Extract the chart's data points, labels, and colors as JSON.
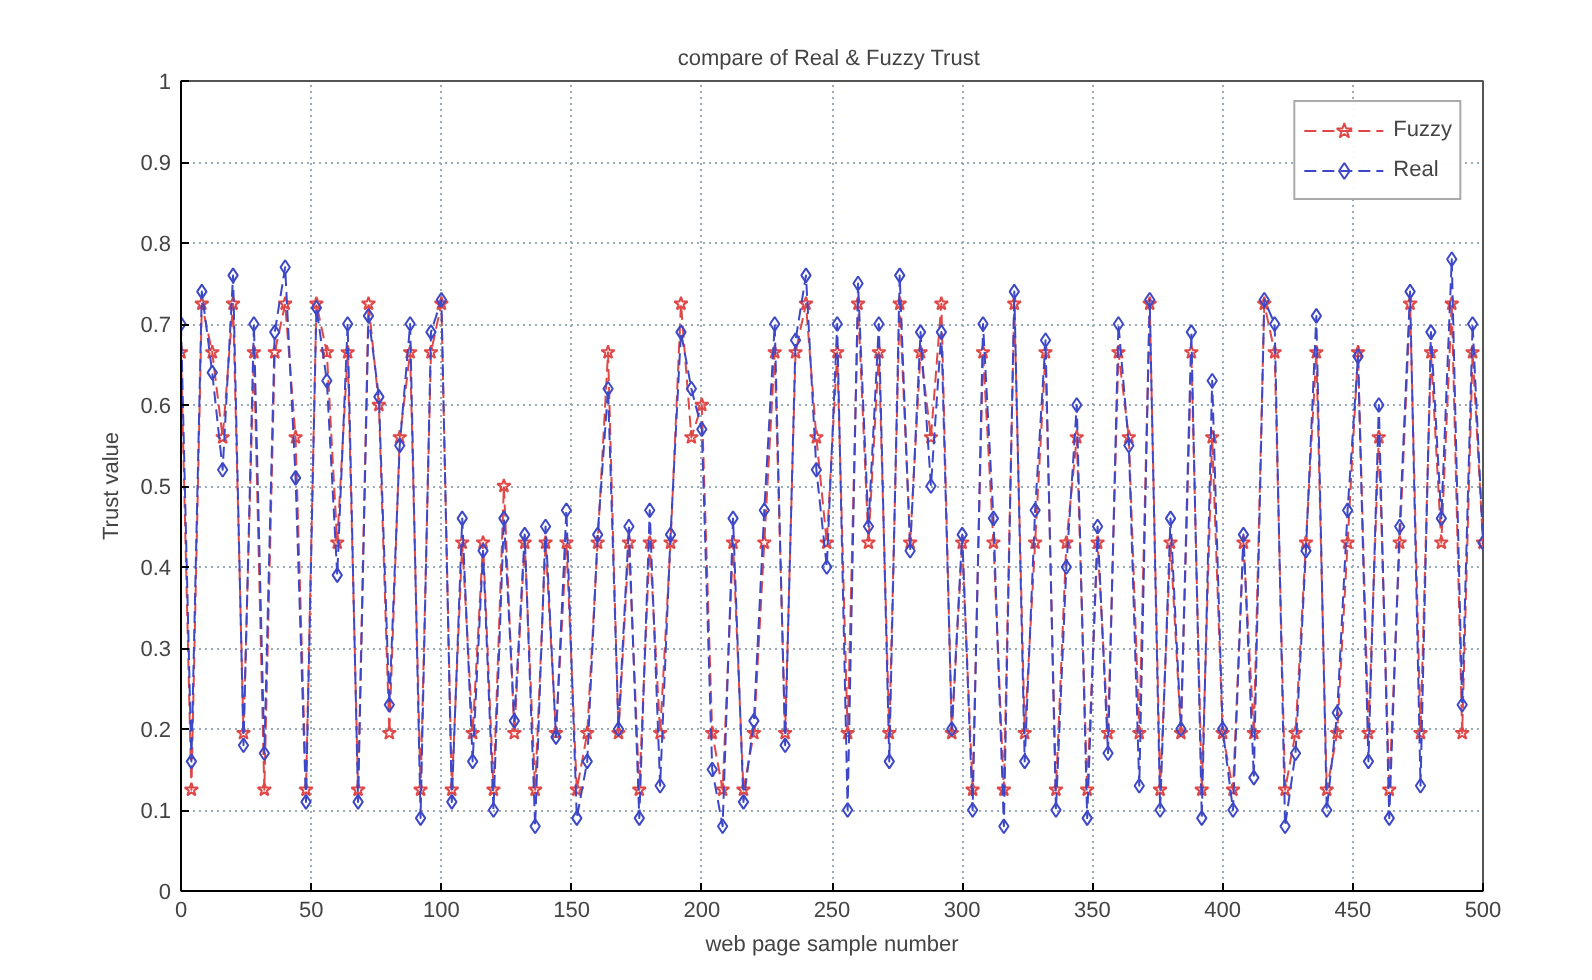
{
  "chart_data": {
    "type": "line",
    "title": "compare of Real &  Fuzzy Trust",
    "xlabel": "web page sample number",
    "ylabel": "Trust value",
    "x": [
      0,
      4,
      8,
      12,
      16,
      20,
      24,
      28,
      32,
      36,
      40,
      44,
      48,
      52,
      56,
      60,
      64,
      68,
      72,
      76,
      80,
      84,
      88,
      92,
      96,
      100,
      104,
      108,
      112,
      116,
      120,
      124,
      128,
      132,
      136,
      140,
      144,
      148,
      152,
      156,
      160,
      164,
      168,
      172,
      176,
      180,
      184,
      188,
      192,
      196,
      200,
      204,
      208,
      212,
      216,
      220,
      224,
      228,
      232,
      236,
      240,
      244,
      248,
      252,
      256,
      260,
      264,
      268,
      272,
      276,
      280,
      284,
      288,
      292,
      296,
      300,
      304,
      308,
      312,
      316,
      320,
      324,
      328,
      332,
      336,
      340,
      344,
      348,
      352,
      356,
      360,
      364,
      368,
      372,
      376,
      380,
      384,
      388,
      392,
      396,
      400,
      404,
      408,
      412,
      416,
      420,
      424,
      428,
      432,
      436,
      440,
      444,
      448,
      452,
      456,
      460,
      464,
      468,
      472,
      476,
      480,
      484,
      488,
      492,
      496,
      500
    ],
    "series": [
      {
        "name": "Fuzzy",
        "color": "#e04848",
        "marker": "star",
        "values": [
          0.665,
          0.125,
          0.725,
          0.665,
          0.56,
          0.725,
          0.195,
          0.665,
          0.125,
          0.665,
          0.725,
          0.56,
          0.125,
          0.725,
          0.665,
          0.43,
          0.665,
          0.125,
          0.725,
          0.6,
          0.195,
          0.56,
          0.665,
          0.125,
          0.665,
          0.725,
          0.125,
          0.43,
          0.195,
          0.43,
          0.125,
          0.5,
          0.195,
          0.43,
          0.125,
          0.43,
          0.195,
          0.43,
          0.125,
          0.195,
          0.43,
          0.665,
          0.195,
          0.43,
          0.125,
          0.43,
          0.195,
          0.43,
          0.725,
          0.56,
          0.6,
          0.195,
          0.125,
          0.43,
          0.125,
          0.195,
          0.43,
          0.665,
          0.195,
          0.665,
          0.725,
          0.56,
          0.43,
          0.665,
          0.195,
          0.725,
          0.43,
          0.665,
          0.195,
          0.725,
          0.43,
          0.665,
          0.56,
          0.725,
          0.195,
          0.43,
          0.125,
          0.665,
          0.43,
          0.125,
          0.725,
          0.195,
          0.43,
          0.665,
          0.125,
          0.43,
          0.56,
          0.125,
          0.43,
          0.195,
          0.665,
          0.56,
          0.195,
          0.725,
          0.125,
          0.43,
          0.195,
          0.665,
          0.125,
          0.56,
          0.195,
          0.125,
          0.43,
          0.195,
          0.725,
          0.665,
          0.125,
          0.195,
          0.43,
          0.665,
          0.125,
          0.195,
          0.43,
          0.665,
          0.195,
          0.56,
          0.125,
          0.43,
          0.725,
          0.195,
          0.665,
          0.43,
          0.725,
          0.195,
          0.665,
          0.43
        ]
      },
      {
        "name": "Real",
        "color": "#3c48c8",
        "marker": "diamond",
        "values": [
          0.7,
          0.16,
          0.74,
          0.64,
          0.52,
          0.76,
          0.18,
          0.7,
          0.17,
          0.69,
          0.77,
          0.51,
          0.11,
          0.72,
          0.63,
          0.39,
          0.7,
          0.11,
          0.71,
          0.61,
          0.23,
          0.55,
          0.7,
          0.09,
          0.69,
          0.73,
          0.11,
          0.46,
          0.16,
          0.42,
          0.1,
          0.46,
          0.21,
          0.44,
          0.08,
          0.45,
          0.19,
          0.47,
          0.09,
          0.16,
          0.44,
          0.62,
          0.2,
          0.45,
          0.09,
          0.47,
          0.13,
          0.44,
          0.69,
          0.62,
          0.57,
          0.15,
          0.08,
          0.46,
          0.11,
          0.21,
          0.47,
          0.7,
          0.18,
          0.68,
          0.76,
          0.52,
          0.4,
          0.7,
          0.1,
          0.75,
          0.45,
          0.7,
          0.16,
          0.76,
          0.42,
          0.69,
          0.5,
          0.69,
          0.2,
          0.44,
          0.1,
          0.7,
          0.46,
          0.08,
          0.74,
          0.16,
          0.47,
          0.68,
          0.1,
          0.4,
          0.6,
          0.09,
          0.45,
          0.17,
          0.7,
          0.55,
          0.13,
          0.73,
          0.1,
          0.46,
          0.2,
          0.69,
          0.09,
          0.63,
          0.2,
          0.1,
          0.44,
          0.14,
          0.73,
          0.7,
          0.08,
          0.17,
          0.42,
          0.71,
          0.1,
          0.22,
          0.47,
          0.66,
          0.16,
          0.6,
          0.09,
          0.45,
          0.74,
          0.13,
          0.69,
          0.46,
          0.78,
          0.23,
          0.7,
          0.43
        ]
      }
    ],
    "xlim": [
      0,
      500
    ],
    "xticks": [
      0,
      50,
      100,
      150,
      200,
      250,
      300,
      350,
      400,
      450,
      500
    ],
    "ylim": [
      0,
      1
    ],
    "yticks": [
      0,
      0.1,
      0.2,
      0.3,
      0.4,
      0.5,
      0.6,
      0.7,
      0.8,
      0.9,
      1
    ],
    "grid": true,
    "legend": "top right",
    "line_style": "dashed"
  }
}
